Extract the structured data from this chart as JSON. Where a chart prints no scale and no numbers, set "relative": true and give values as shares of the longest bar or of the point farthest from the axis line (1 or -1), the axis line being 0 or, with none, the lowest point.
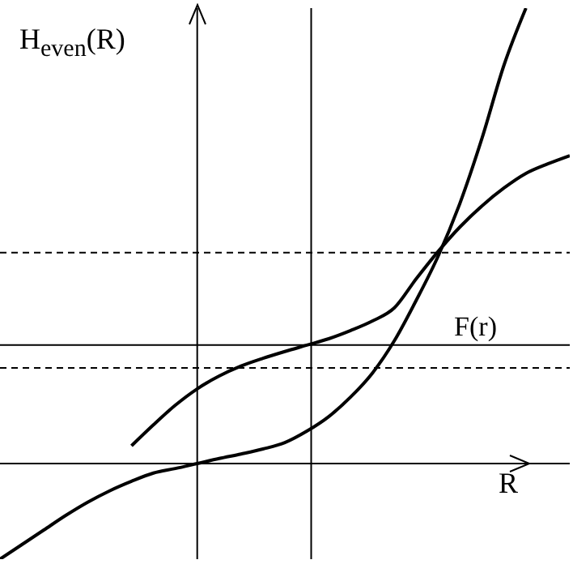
{
  "chart_data": {
    "type": "line",
    "relative": true,
    "xlabel": "R",
    "ylabel": "H$_{even}$(R)",
    "categories": [
      null,
      null,
      null,
      null,
      null,
      null,
      null,
      null,
      null,
      null,
      null,
      null,
      null,
      null,
      null,
      null,
      null,
      null,
      null,
      null,
      null,
      null,
      null,
      null,
      null,
      null,
      null
    ],
    "series": [
      {
        "color": "#000000",
        "values": [
          -0.21,
          -0.178,
          -0.146,
          -0.114,
          -0.085,
          -0.06,
          -0.039,
          -0.021,
          -0.011,
          0,
          0.011,
          0.021,
          0.032,
          0.046,
          0.071,
          0.103,
          0.146,
          0.199,
          0.27,
          0.359,
          0.456,
          0.573,
          0.715,
          0.875,
          1,
          null,
          null
        ]
      },
      {
        "color": "#000000",
        "values": [
          null,
          null,
          null,
          null,
          null,
          null,
          0.039,
          0.085,
          0.128,
          0.164,
          0.192,
          0.214,
          0.231,
          0.246,
          0.26,
          0.274,
          0.292,
          0.313,
          0.342,
          0.406,
          0.466,
          0.52,
          0.566,
          0.605,
          0.637,
          0.658,
          0.676
        ]
      }
    ],
    "ref_lines": [
      {
        "axis": "y",
        "value": 0.26,
        "label": "F(r)",
        "line_style": "solid"
      },
      {
        "axis": "y",
        "value": 0.463,
        "line_style": "dashed"
      },
      {
        "axis": "y",
        "value": 0.21,
        "line_style": "dashed"
      }
    ],
    "line_style": "solid"
  }
}
